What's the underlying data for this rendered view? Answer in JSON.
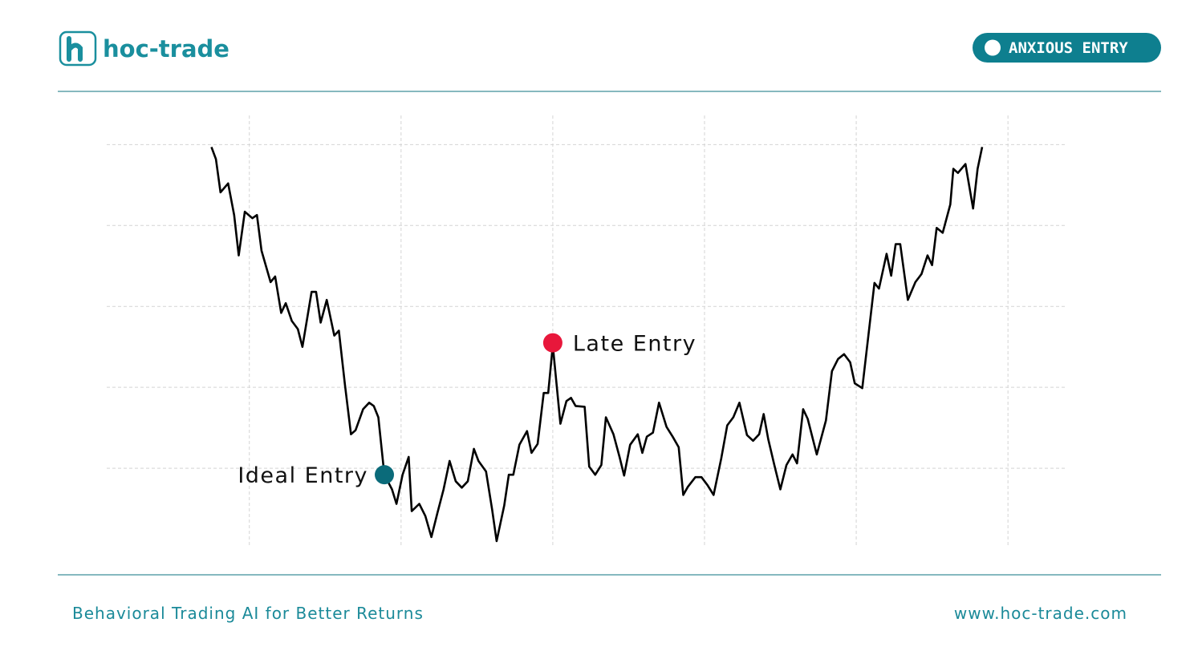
{
  "header": {
    "brand": "hoc-trade",
    "badge": "ANXIOUS ENTRY"
  },
  "chart_data": {
    "type": "line",
    "x": [
      0.75,
      0.78,
      0.81,
      0.86,
      0.9,
      0.93,
      0.97,
      1.02,
      1.05,
      1.08,
      1.14,
      1.17,
      1.21,
      1.24,
      1.28,
      1.32,
      1.35,
      1.41,
      1.44,
      1.47,
      1.51,
      1.56,
      1.59,
      1.63,
      1.67,
      1.7,
      1.75,
      1.79,
      1.82,
      1.85,
      1.89,
      1.94,
      1.97,
      2.01,
      2.05,
      2.07,
      2.12,
      2.16,
      2.2,
      2.24,
      2.28,
      2.32,
      2.36,
      2.4,
      2.44,
      2.48,
      2.51,
      2.56,
      2.6,
      2.63,
      2.68,
      2.71,
      2.74,
      2.78,
      2.83,
      2.86,
      2.9,
      2.94,
      2.97,
      3.0,
      3.05,
      3.09,
      3.12,
      3.15,
      3.21,
      3.24,
      3.28,
      3.32,
      3.35,
      3.4,
      3.44,
      3.47,
      3.51,
      3.56,
      3.59,
      3.62,
      3.66,
      3.7,
      3.75,
      3.79,
      3.83,
      3.86,
      3.89,
      3.94,
      3.98,
      4.02,
      4.06,
      4.11,
      4.15,
      4.19,
      4.23,
      4.28,
      4.32,
      4.36,
      4.39,
      4.42,
      4.46,
      4.5,
      4.54,
      4.58,
      4.61,
      4.65,
      4.68,
      4.74,
      4.8,
      4.84,
      4.88,
      4.92,
      4.96,
      4.99,
      5.04,
      5.08,
      5.12,
      5.15,
      5.2,
      5.23,
      5.26,
      5.29,
      5.34,
      5.39,
      5.43,
      5.47,
      5.5,
      5.53,
      5.57,
      5.62,
      5.64,
      5.67,
      5.72,
      5.77,
      5.8,
      5.83
    ],
    "series": [
      {
        "color": "#000000",
        "values": [
          4.97,
          4.82,
          4.41,
          4.52,
          4.13,
          3.63,
          4.17,
          4.09,
          4.13,
          3.69,
          3.3,
          3.37,
          2.92,
          3.04,
          2.82,
          2.72,
          2.5,
          3.18,
          3.18,
          2.8,
          3.08,
          2.64,
          2.7,
          2.03,
          1.42,
          1.47,
          1.73,
          1.81,
          1.77,
          1.63,
          0.92,
          0.74,
          0.56,
          0.92,
          1.14,
          0.47,
          0.56,
          0.41,
          0.15,
          0.45,
          0.74,
          1.09,
          0.84,
          0.76,
          0.84,
          1.24,
          1.09,
          0.96,
          0.49,
          0.1,
          0.54,
          0.92,
          0.92,
          1.29,
          1.46,
          1.19,
          1.3,
          1.93,
          1.93,
          2.52,
          1.55,
          1.83,
          1.87,
          1.77,
          1.76,
          1.02,
          0.92,
          1.04,
          1.63,
          1.42,
          1.14,
          0.91,
          1.29,
          1.42,
          1.19,
          1.39,
          1.44,
          1.81,
          1.51,
          1.39,
          1.26,
          0.67,
          0.77,
          0.89,
          0.89,
          0.79,
          0.67,
          1.12,
          1.53,
          1.63,
          1.81,
          1.41,
          1.34,
          1.42,
          1.67,
          1.36,
          1.04,
          0.74,
          1.04,
          1.17,
          1.06,
          1.73,
          1.61,
          1.17,
          1.59,
          2.2,
          2.35,
          2.41,
          2.31,
          2.05,
          1.99,
          2.64,
          3.29,
          3.22,
          3.65,
          3.38,
          3.77,
          3.77,
          3.08,
          3.3,
          3.4,
          3.63,
          3.51,
          3.97,
          3.91,
          4.26,
          4.7,
          4.65,
          4.76,
          4.21,
          4.7,
          4.97
        ]
      }
    ],
    "annotations": [
      {
        "text": "Ideal Entry",
        "x": 1.89,
        "y": 0.92,
        "color": "#0b6b7a"
      },
      {
        "text": "Late Entry",
        "x": 3.0,
        "y": 2.55,
        "color": "#e8173b"
      }
    ],
    "xlim": [
      0.06,
      6.38
    ],
    "ylim": [
      0.05,
      5.36
    ],
    "xticks": [
      1,
      2,
      3,
      4,
      5,
      6
    ],
    "yticks": [
      1,
      2,
      3,
      4,
      5
    ],
    "grid": true
  },
  "footer": {
    "tagline": "Behavioral Trading AI for Better Returns",
    "url": "www.hoc-trade.com"
  }
}
